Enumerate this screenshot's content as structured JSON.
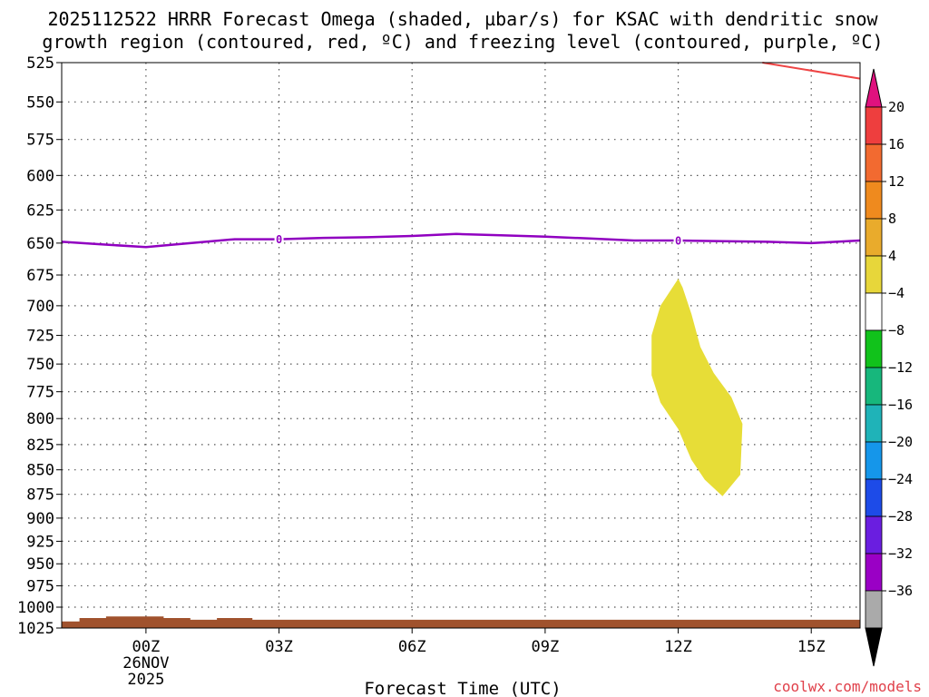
{
  "chart_data": {
    "type": "heatmap",
    "title_line1": "2025112522 HRRR Forecast Omega (shaded, µbar/s) for KSAC with dendritic snow",
    "title_line2": "growth region (contoured, red, ºC) and freezing level (contoured, purple, ºC)",
    "xlabel": "Forecast Time (UTC)",
    "x_range_hours": [
      -1.9,
      16.1
    ],
    "x_ticks": [
      {
        "hour": 0,
        "label": "00Z",
        "date_line1": "26NOV",
        "date_line2": "2025"
      },
      {
        "hour": 3,
        "label": "03Z"
      },
      {
        "hour": 6,
        "label": "06Z"
      },
      {
        "hour": 9,
        "label": "09Z"
      },
      {
        "hour": 12,
        "label": "12Z"
      },
      {
        "hour": 15,
        "label": "15Z"
      }
    ],
    "y_ticks": [
      525,
      550,
      575,
      600,
      625,
      650,
      675,
      700,
      725,
      750,
      775,
      800,
      825,
      850,
      875,
      900,
      925,
      950,
      975,
      1000,
      1025
    ],
    "y_scale": "log-pressure",
    "y_range_mb": [
      525,
      1025
    ],
    "grid": true,
    "colorbar": {
      "labels": [
        "20",
        "16",
        "12",
        "8",
        "4",
        "-4",
        "-8",
        "-12",
        "-16",
        "-20",
        "-24",
        "-28",
        "-32",
        "-36"
      ],
      "colors_top_to_bottom": [
        "#ee3e3e",
        "#f26a30",
        "#ef8a1e",
        "#e9ab2c",
        "#e7d63a",
        "#ffffff",
        "#11c21b",
        "#17b77c",
        "#1fb3b8",
        "#1596ea",
        "#1d4be8",
        "#6a1ee0",
        "#9a00c5",
        "#aaaaaa"
      ],
      "top_arrow_color": "#e0117e",
      "bottom_arrow_color": "#000000"
    },
    "freezing_level": {
      "color": "#9000c0",
      "label": "0",
      "label_hours": [
        3,
        12
      ],
      "points": [
        [
          -1.9,
          649
        ],
        [
          -1,
          651
        ],
        [
          0,
          653
        ],
        [
          1,
          650
        ],
        [
          2,
          647
        ],
        [
          3,
          647
        ],
        [
          4,
          646
        ],
        [
          5,
          645.5
        ],
        [
          6,
          644.5
        ],
        [
          7,
          643
        ],
        [
          8,
          644
        ],
        [
          9,
          645
        ],
        [
          10,
          646.5
        ],
        [
          11,
          648
        ],
        [
          12,
          648
        ],
        [
          13,
          648.5
        ],
        [
          14,
          649
        ],
        [
          15,
          650
        ],
        [
          16.1,
          648
        ]
      ]
    },
    "dgz_contour": {
      "color": "#ee4444",
      "points": [
        [
          13.9,
          525
        ],
        [
          16.1,
          535
        ]
      ]
    },
    "omega_region": {
      "value_band": "4 to 8",
      "color": "#e7dd37",
      "polygon": [
        [
          12,
          678
        ],
        [
          11.6,
          700
        ],
        [
          11.4,
          725
        ],
        [
          11.4,
          760
        ],
        [
          11.6,
          785
        ],
        [
          12,
          810
        ],
        [
          12.3,
          840
        ],
        [
          12.6,
          860
        ],
        [
          13.0,
          877
        ],
        [
          13.4,
          855
        ],
        [
          13.45,
          805
        ],
        [
          13.2,
          780
        ],
        [
          12.8,
          758
        ],
        [
          12.5,
          735
        ],
        [
          12.3,
          707
        ],
        [
          12.1,
          685
        ]
      ]
    },
    "terrain": {
      "color": "#a0522d",
      "points": [
        [
          -1.9,
          1017
        ],
        [
          -1.5,
          1017
        ],
        [
          -1.5,
          1013
        ],
        [
          -0.9,
          1013
        ],
        [
          -0.9,
          1011
        ],
        [
          0.4,
          1011
        ],
        [
          0.4,
          1013
        ],
        [
          1,
          1013
        ],
        [
          1,
          1015
        ],
        [
          1.6,
          1015
        ],
        [
          1.6,
          1013
        ],
        [
          2.4,
          1013
        ],
        [
          2.4,
          1015
        ],
        [
          4,
          1015
        ],
        [
          16.1,
          1015
        ]
      ]
    }
  },
  "credit": "coolwx.com/models"
}
